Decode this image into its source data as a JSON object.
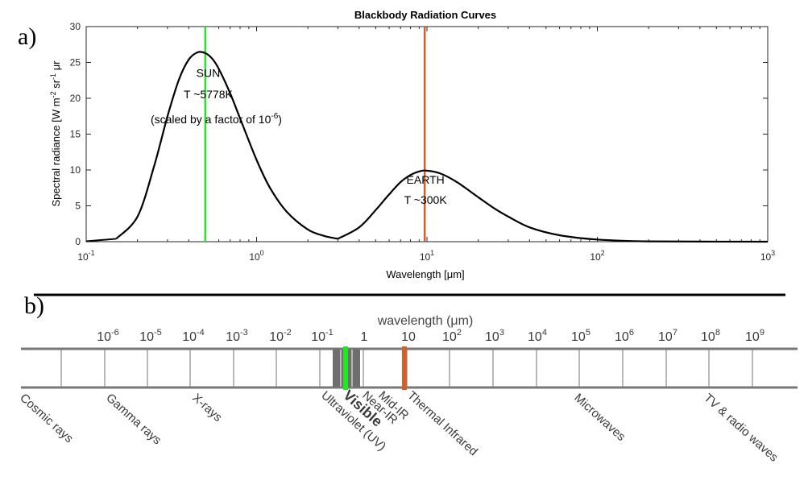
{
  "panel_a": {
    "label": "a)",
    "chart_data": {
      "type": "line",
      "title": "Blackbody Radiation Curves",
      "xlabel": "Wavelength [μm]",
      "ylabel_parts": [
        "Spectral radiance [W m",
        "-2",
        " sr",
        "-1",
        " μr"
      ],
      "xscale": "log",
      "xlim": [
        0.1,
        1000
      ],
      "ylim": [
        0,
        30
      ],
      "x_ticks": [
        {
          "value": 0.1,
          "base": "10",
          "exp": "-1"
        },
        {
          "value": 1,
          "base": "10",
          "exp": "0"
        },
        {
          "value": 10,
          "base": "10",
          "exp": "1"
        },
        {
          "value": 100,
          "base": "10",
          "exp": "2"
        },
        {
          "value": 1000,
          "base": "10",
          "exp": "3"
        }
      ],
      "y_ticks": [
        "0",
        "5",
        "10",
        "15",
        "20",
        "25",
        "30"
      ],
      "series": [
        {
          "x": [
            0.15,
            0.2,
            0.25,
            0.3,
            0.35,
            0.4,
            0.45,
            0.5,
            0.55,
            0.6,
            0.7,
            0.8,
            1.0,
            1.2,
            1.5,
            2.0,
            2.5,
            3.0
          ],
          "y": [
            0.4,
            3.5,
            10.5,
            17.5,
            22.6,
            25.4,
            26.4,
            26.3,
            25.5,
            24.1,
            20.7,
            17.2,
            11.4,
            7.5,
            4.2,
            1.7,
            0.8,
            0.4
          ]
        },
        {
          "x": [
            3.0,
            4.0,
            5.0,
            6.0,
            7.0,
            8.0,
            9.0,
            10.0,
            12.0,
            15.0,
            20.0,
            25.0,
            30.0,
            40.0,
            60.0,
            100.0,
            200.0,
            1000.0
          ],
          "y": [
            0.4,
            2.0,
            4.4,
            6.6,
            8.3,
            9.3,
            9.8,
            9.9,
            9.5,
            8.3,
            6.2,
            4.6,
            3.5,
            2.0,
            0.9,
            0.3,
            0.05,
            0.0
          ]
        }
      ],
      "vlines": [
        {
          "x": 0.5,
          "color": "#22e822"
        },
        {
          "x": 9.7,
          "color": "#d35f2a"
        }
      ],
      "annotations": [
        {
          "text": "SUN",
          "x": 0.52,
          "y": 23
        },
        {
          "text": "T ~5778K",
          "x": 0.52,
          "y": 20
        },
        {
          "text_main": "(scaled by a factor of 10",
          "text_exp": "-6",
          "text_end": ")",
          "x": 0.58,
          "y": 16.5
        },
        {
          "text": "EARTH",
          "x": 9.8,
          "y": 8.1
        },
        {
          "text": "T ~300K",
          "x": 9.8,
          "y": 5.3
        }
      ]
    }
  },
  "panel_b": {
    "label": "b)",
    "title": "wavelength (μm)",
    "ticks": [
      {
        "base": "10",
        "exp": "-6"
      },
      {
        "base": "10",
        "exp": "-5"
      },
      {
        "base": "10",
        "exp": "-4"
      },
      {
        "base": "10",
        "exp": "-3"
      },
      {
        "base": "10",
        "exp": "-2"
      },
      {
        "base": "10",
        "exp": "-1"
      },
      {
        "base": "1",
        "exp": ""
      },
      {
        "base": "10",
        "exp": ""
      },
      {
        "base": "10",
        "exp": "2"
      },
      {
        "base": "10",
        "exp": "3"
      },
      {
        "base": "10",
        "exp": "4"
      },
      {
        "base": "10",
        "exp": "5"
      },
      {
        "base": "10",
        "exp": "6"
      },
      {
        "base": "10",
        "exp": "7"
      },
      {
        "base": "10",
        "exp": "8"
      },
      {
        "base": "10",
        "exp": "9"
      }
    ],
    "bands": [
      {
        "text": "Cosmic rays"
      },
      {
        "text": "Gamma rays"
      },
      {
        "text": "X-rays"
      },
      {
        "text": "Ultraviolet (UV)"
      },
      {
        "text": "Visible"
      },
      {
        "text": "Near-IR"
      },
      {
        "text": "Mid-IR"
      },
      {
        "text": "Thermal Infrared"
      },
      {
        "text": "Microwaves"
      },
      {
        "text": "TV & radio waves"
      }
    ],
    "colors": {
      "visible": "#22e822",
      "thermal": "#d35f2a",
      "band": "#6e6e6e"
    }
  }
}
